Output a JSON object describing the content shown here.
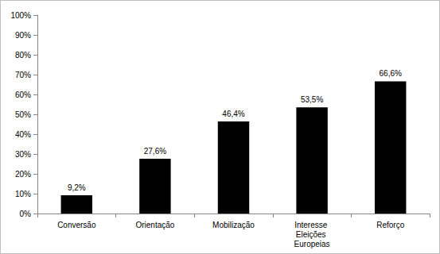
{
  "chart_data": {
    "type": "bar",
    "categories": [
      "Conversão",
      "Orientação",
      "Mobilização",
      "Interesse Eleições Europeias",
      "Reforço"
    ],
    "values": [
      9.2,
      27.6,
      46.4,
      53.5,
      66.6
    ],
    "value_labels": [
      "9,2%",
      "27,6%",
      "46,4%",
      "53,5%",
      "66,6%"
    ],
    "color": "#000000",
    "data_labels": true,
    "grid": false,
    "ylim": [
      0,
      100
    ],
    "yticks": [
      {
        "value": 0,
        "label": "0%"
      },
      {
        "value": 10,
        "label": "10%"
      },
      {
        "value": 20,
        "label": "20%"
      },
      {
        "value": 30,
        "label": "30%"
      },
      {
        "value": 40,
        "label": "40%"
      },
      {
        "value": 50,
        "label": "50%"
      },
      {
        "value": 60,
        "label": "60%"
      },
      {
        "value": 70,
        "label": "70%"
      },
      {
        "value": 80,
        "label": "80%"
      },
      {
        "value": 90,
        "label": "90%"
      },
      {
        "value": 100,
        "label": "100%"
      }
    ]
  }
}
